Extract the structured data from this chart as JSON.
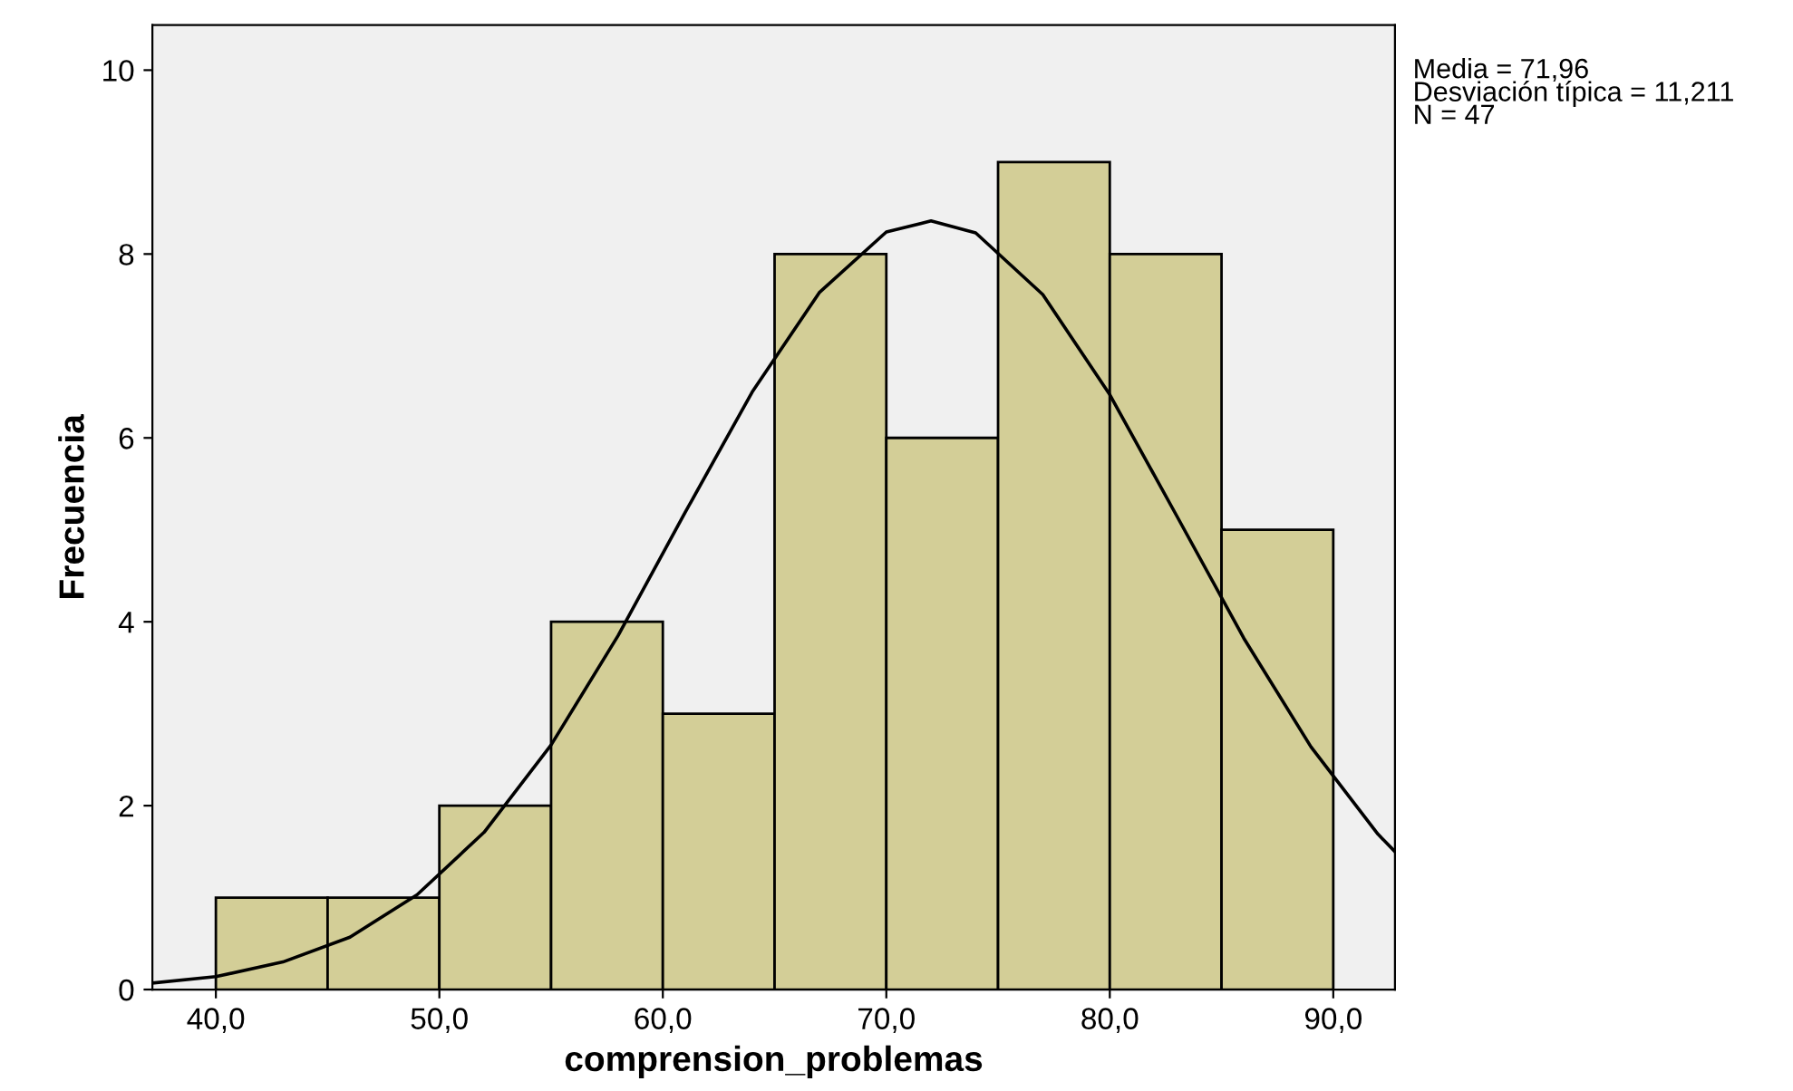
{
  "chart_data": {
    "type": "histogram",
    "xlabel": "comprension_problemas",
    "ylabel": "Frecuencia",
    "annotations": [
      "Media = 71,96",
      "Desviación típica = 11,211",
      "N = 47"
    ],
    "bins": [
      40,
      45,
      50,
      55,
      60,
      65,
      70,
      75,
      80,
      85,
      90
    ],
    "series": [
      {
        "color": "#d3ce97",
        "values": [
          1,
          1,
          2,
          4,
          3,
          8,
          6,
          9,
          8,
          5
        ]
      },
      {
        "type": "line",
        "color": "#000000",
        "x": [
          37.16,
          40,
          43,
          46,
          49,
          52,
          55,
          58,
          61,
          64,
          67,
          70,
          72,
          74,
          77,
          80,
          83,
          86,
          89,
          92,
          92.76
        ],
        "values": [
          0.07,
          0.14,
          0.3,
          0.57,
          1.03,
          1.71,
          2.66,
          3.85,
          5.19,
          6.5,
          7.58,
          8.24,
          8.36,
          8.23,
          7.56,
          6.47,
          5.15,
          3.82,
          2.64,
          1.69,
          1.5
        ]
      }
    ],
    "xlim": [
      37.16,
      92.76
    ],
    "ylim": [
      0,
      10.49
    ],
    "xticks": [
      {
        "value": 40,
        "label": "40,0"
      },
      {
        "value": 50,
        "label": "50,0"
      },
      {
        "value": 60,
        "label": "60,0"
      },
      {
        "value": 70,
        "label": "70,0"
      },
      {
        "value": 80,
        "label": "80,0"
      },
      {
        "value": 90,
        "label": "90,0"
      }
    ],
    "yticks": [
      0,
      2,
      4,
      6,
      8,
      10
    ],
    "grid": false,
    "legend": false,
    "marker": "none",
    "line_style": "solid"
  }
}
